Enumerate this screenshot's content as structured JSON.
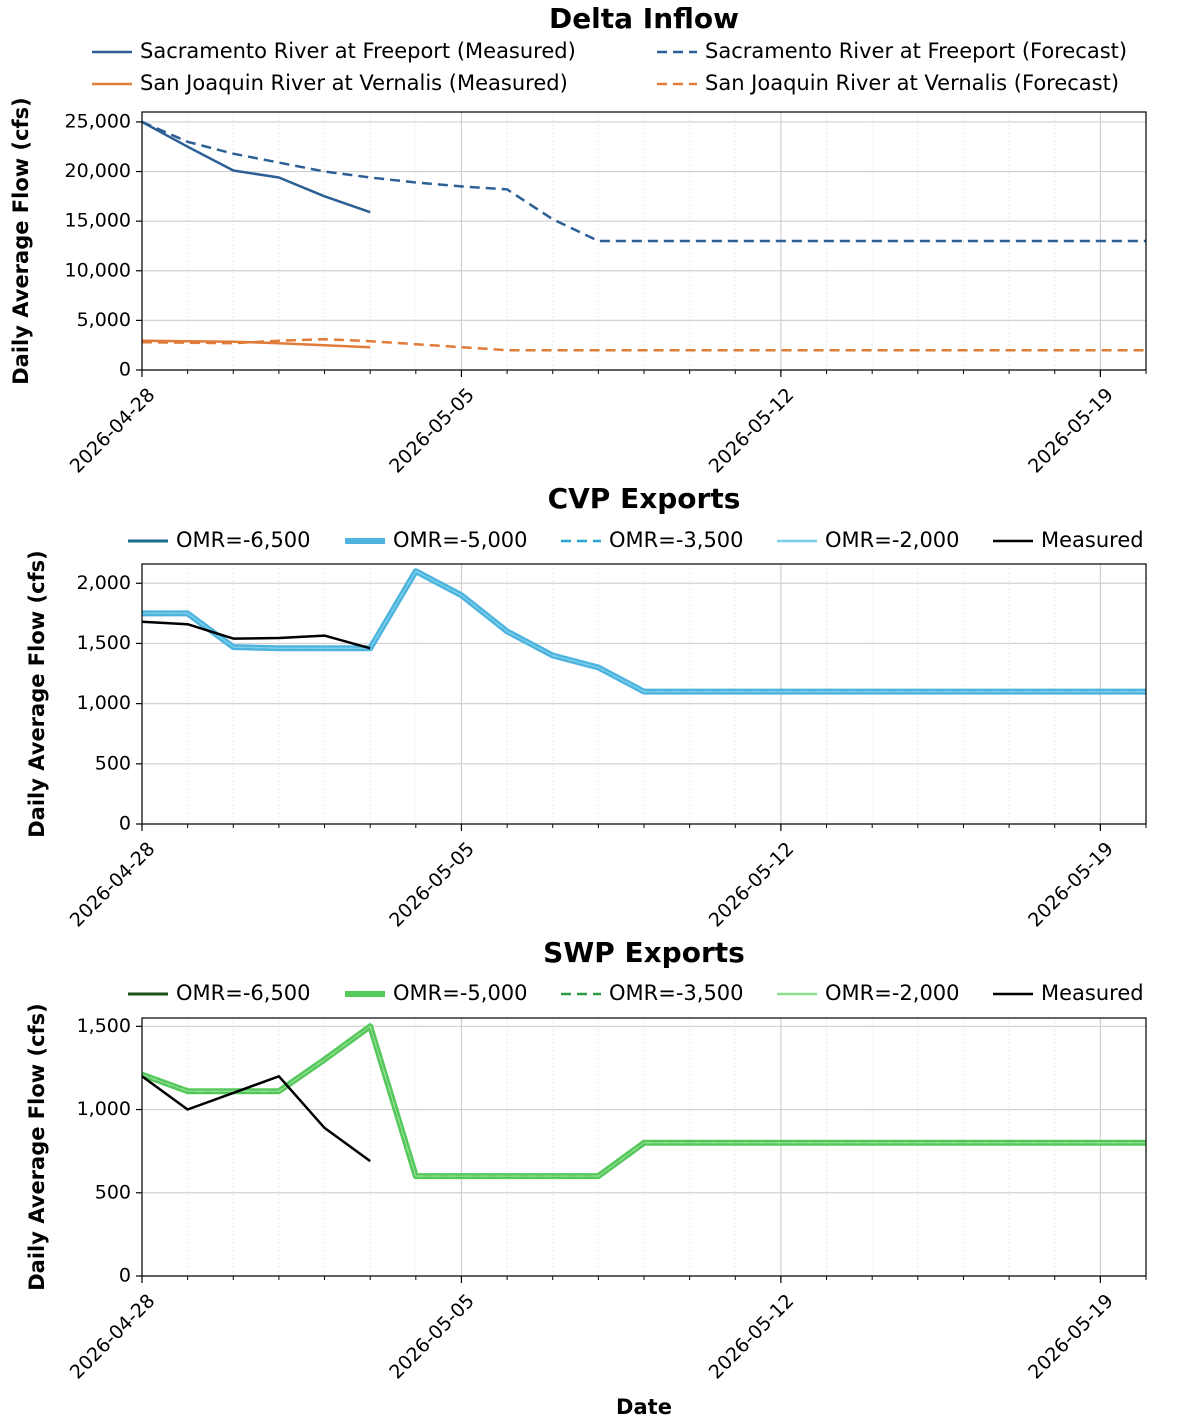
{
  "chart_data": [
    {
      "type": "line",
      "title": "Delta Inflow",
      "ylabel": "Daily Average Flow (cfs)",
      "grid": true,
      "legend": "top",
      "x": [
        "2026-04-28",
        "2026-04-29",
        "2026-04-30",
        "2026-05-01",
        "2026-05-02",
        "2026-05-03",
        "2026-05-04",
        "2026-05-05",
        "2026-05-06",
        "2026-05-07",
        "2026-05-08",
        "2026-05-09",
        "2026-05-10",
        "2026-05-11",
        "2026-05-12",
        "2026-05-13",
        "2026-05-14",
        "2026-05-15",
        "2026-05-16",
        "2026-05-17",
        "2026-05-18",
        "2026-05-19",
        "2026-05-20"
      ],
      "xlim": [
        "2026-04-28",
        "2026-05-20"
      ],
      "xticks": [
        "2026-04-28",
        "2026-05-05",
        "2026-05-12",
        "2026-05-19"
      ],
      "ylim": [
        0,
        26000
      ],
      "yticks": [
        0,
        {
          "value": 5000,
          "label": "5,000"
        },
        {
          "value": 10000,
          "label": "10,000"
        },
        {
          "value": 15000,
          "label": "15,000"
        },
        {
          "value": 20000,
          "label": "20,000"
        },
        {
          "value": 25000,
          "label": "25,000"
        }
      ],
      "series": [
        {
          "name": "Sacramento River at Freeport (Measured)",
          "color": "#2c5f95",
          "style": "solid",
          "values": [
            25000,
            22500,
            20100,
            19400,
            17500,
            15900,
            null,
            null,
            null,
            null,
            null,
            null,
            null,
            null,
            null,
            null,
            null,
            null,
            null,
            null,
            null,
            null,
            null
          ]
        },
        {
          "name": "Sacramento River at Freeport (Forecast)",
          "color": "#2c5f95",
          "style": "dashed",
          "values": [
            25000,
            23000,
            21800,
            20900,
            20000,
            19400,
            18900,
            18500,
            18200,
            15200,
            13000,
            13000,
            13000,
            13000,
            13000,
            13000,
            13000,
            13000,
            13000,
            13000,
            13000,
            13000,
            13000
          ]
        },
        {
          "name": "San Joaquin River at Vernalis (Measured)",
          "color": "#e07b39",
          "style": "solid",
          "values": [
            2950,
            2900,
            2850,
            2700,
            2500,
            2300,
            null,
            null,
            null,
            null,
            null,
            null,
            null,
            null,
            null,
            null,
            null,
            null,
            null,
            null,
            null,
            null,
            null
          ]
        },
        {
          "name": "San Joaquin River at Vernalis (Forecast)",
          "color": "#e07b39",
          "style": "dashed",
          "values": [
            2800,
            2750,
            2700,
            2950,
            3100,
            2900,
            2600,
            2300,
            2000,
            2000,
            2000,
            2000,
            2000,
            2000,
            2000,
            2000,
            2000,
            2000,
            2000,
            2000,
            2000,
            2000,
            2000
          ]
        }
      ]
    },
    {
      "type": "line",
      "title": "CVP Exports",
      "ylabel": "Daily Average Flow (cfs)",
      "grid": true,
      "legend": "top",
      "x": [
        "2026-04-28",
        "2026-04-29",
        "2026-04-30",
        "2026-05-01",
        "2026-05-02",
        "2026-05-03",
        "2026-05-04",
        "2026-05-05",
        "2026-05-06",
        "2026-05-07",
        "2026-05-08",
        "2026-05-09",
        "2026-05-10",
        "2026-05-11",
        "2026-05-12",
        "2026-05-13",
        "2026-05-14",
        "2026-05-15",
        "2026-05-16",
        "2026-05-17",
        "2026-05-18",
        "2026-05-19",
        "2026-05-20"
      ],
      "xlim": [
        "2026-04-28",
        "2026-05-20"
      ],
      "xticks": [
        "2026-04-28",
        "2026-05-05",
        "2026-05-12",
        "2026-05-19"
      ],
      "ylim": [
        0,
        2160
      ],
      "yticks": [
        0,
        500,
        {
          "value": 1000,
          "label": "1,000"
        },
        {
          "value": 1500,
          "label": "1,500"
        },
        {
          "value": 2000,
          "label": "2,000"
        }
      ],
      "series": [
        {
          "name": "OMR=-6,500",
          "color": "#1a6e8e",
          "style": "solid",
          "values": [
            1750,
            1750,
            1470,
            1460,
            1460,
            1460,
            2100,
            1900,
            1600,
            1400,
            1300,
            1100,
            1100,
            1100,
            1100,
            1100,
            1100,
            1100,
            1100,
            1100,
            1100,
            1100,
            1100
          ]
        },
        {
          "name": "OMR=-5,000",
          "color": "#4fb3e0",
          "style": "solid",
          "values": [
            1750,
            1750,
            1470,
            1460,
            1460,
            1460,
            2100,
            1900,
            1600,
            1400,
            1300,
            1100,
            1100,
            1100,
            1100,
            1100,
            1100,
            1100,
            1100,
            1100,
            1100,
            1100,
            1100
          ]
        },
        {
          "name": "OMR=-3,500",
          "color": "#2aa5d0",
          "style": "dashed",
          "values": [
            1750,
            1750,
            1470,
            1460,
            1460,
            1460,
            2100,
            1900,
            1600,
            1400,
            1300,
            1100,
            1100,
            1100,
            1100,
            1100,
            1100,
            1100,
            1100,
            1100,
            1100,
            1100,
            1100
          ]
        },
        {
          "name": "OMR=-2,000",
          "color": "#7ccfe8",
          "style": "solid",
          "values": [
            1750,
            1750,
            1470,
            1460,
            1460,
            1460,
            2100,
            1900,
            1600,
            1400,
            1300,
            1100,
            1100,
            1100,
            1100,
            1100,
            1100,
            1100,
            1100,
            1100,
            1100,
            1100,
            1100
          ]
        },
        {
          "name": "Measured",
          "color": "#000000",
          "style": "solid",
          "values": [
            1680,
            1660,
            1540,
            1545,
            1565,
            1460,
            null,
            null,
            null,
            null,
            null,
            null,
            null,
            null,
            null,
            null,
            null,
            null,
            null,
            null,
            null,
            null,
            null
          ]
        }
      ]
    },
    {
      "type": "line",
      "title": "SWP Exports",
      "ylabel": "Daily Average Flow (cfs)",
      "xlabel": "Date",
      "grid": true,
      "legend": "top",
      "x": [
        "2026-04-28",
        "2026-04-29",
        "2026-04-30",
        "2026-05-01",
        "2026-05-02",
        "2026-05-03",
        "2026-05-04",
        "2026-05-05",
        "2026-05-06",
        "2026-05-07",
        "2026-05-08",
        "2026-05-09",
        "2026-05-10",
        "2026-05-11",
        "2026-05-12",
        "2026-05-13",
        "2026-05-14",
        "2026-05-15",
        "2026-05-16",
        "2026-05-17",
        "2026-05-18",
        "2026-05-19",
        "2026-05-20"
      ],
      "xlim": [
        "2026-04-28",
        "2026-05-20"
      ],
      "xticks": [
        "2026-04-28",
        "2026-05-05",
        "2026-05-12",
        "2026-05-19"
      ],
      "ylim": [
        0,
        1550
      ],
      "yticks": [
        0,
        500,
        {
          "value": 1000,
          "label": "1,000"
        },
        {
          "value": 1500,
          "label": "1,500"
        }
      ],
      "series": [
        {
          "name": "OMR=-6,500",
          "color": "#1a4d1a",
          "style": "solid",
          "values": [
            1210,
            1110,
            1110,
            1110,
            1300,
            1500,
            600,
            600,
            600,
            600,
            600,
            800,
            800,
            800,
            800,
            800,
            800,
            800,
            800,
            800,
            800,
            800,
            800
          ]
        },
        {
          "name": "OMR=-5,000",
          "color": "#55c95a",
          "style": "solid",
          "values": [
            1210,
            1110,
            1110,
            1110,
            1300,
            1500,
            600,
            600,
            600,
            600,
            600,
            800,
            800,
            800,
            800,
            800,
            800,
            800,
            800,
            800,
            800,
            800,
            800
          ]
        },
        {
          "name": "OMR=-3,500",
          "color": "#2e9e46",
          "style": "dashed",
          "values": [
            1210,
            1110,
            1110,
            1110,
            1300,
            1500,
            600,
            600,
            600,
            600,
            600,
            800,
            800,
            800,
            800,
            800,
            800,
            800,
            800,
            800,
            800,
            800,
            800
          ]
        },
        {
          "name": "OMR=-2,000",
          "color": "#8fdf8f",
          "style": "solid",
          "values": [
            1210,
            1110,
            1110,
            1110,
            1300,
            1500,
            600,
            600,
            600,
            600,
            600,
            800,
            800,
            800,
            800,
            800,
            800,
            800,
            800,
            800,
            800,
            800,
            800
          ]
        },
        {
          "name": "Measured",
          "color": "#000000",
          "style": "solid",
          "values": [
            1200,
            1000,
            1100,
            1200,
            890,
            690,
            null,
            null,
            null,
            null,
            null,
            null,
            null,
            null,
            null,
            null,
            null,
            null,
            null,
            null,
            null,
            null,
            null
          ]
        }
      ]
    }
  ]
}
